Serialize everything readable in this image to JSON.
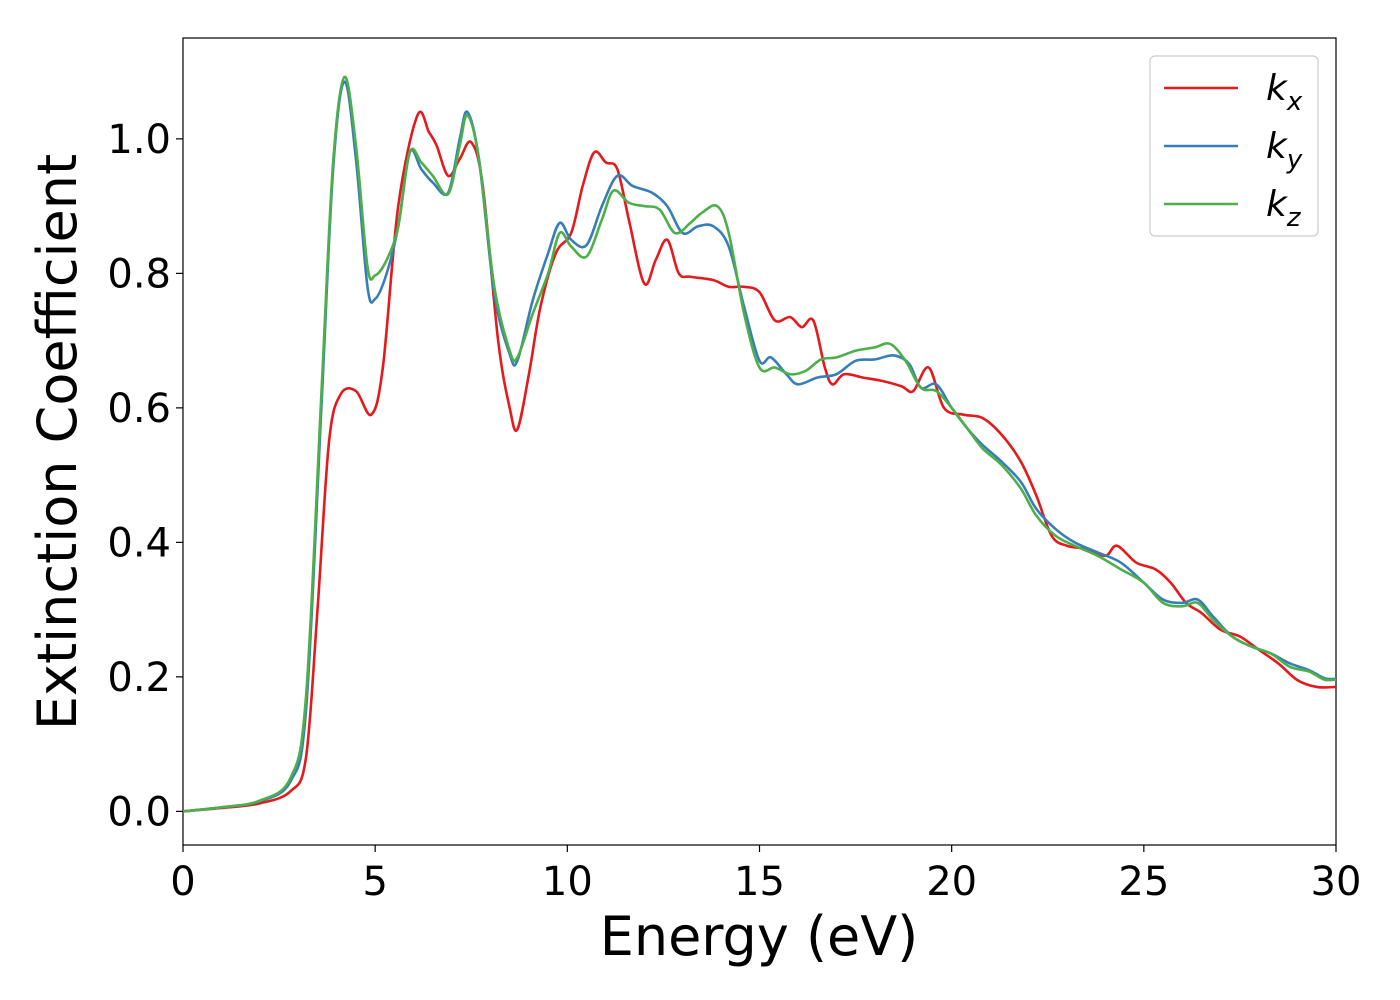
{
  "chart_data": {
    "type": "line",
    "title": "",
    "xlabel": "Energy (eV)",
    "ylabel": "Extinction Coefficient",
    "xlim": [
      0,
      30
    ],
    "ylim": [
      -0.05,
      1.15
    ],
    "xticks": [
      0,
      5,
      10,
      15,
      20,
      25,
      30
    ],
    "xtick_labels": [
      "0",
      "5",
      "10",
      "15",
      "20",
      "25",
      "30"
    ],
    "yticks": [
      0.0,
      0.2,
      0.4,
      0.6,
      0.8,
      1.0
    ],
    "ytick_labels": [
      "0.0",
      "0.2",
      "0.4",
      "0.6",
      "0.8",
      "1.0"
    ],
    "grid": false,
    "legend_placement": "top-right",
    "series": [
      {
        "name": "k",
        "subscript": "x",
        "color": "#e41a1c",
        "points": [
          [
            0,
            0.0
          ],
          [
            1,
            0.005
          ],
          [
            2,
            0.012
          ],
          [
            2.8,
            0.03
          ],
          [
            3.2,
            0.08
          ],
          [
            3.5,
            0.3
          ],
          [
            3.8,
            0.55
          ],
          [
            4.1,
            0.62
          ],
          [
            4.5,
            0.625
          ],
          [
            4.9,
            0.59
          ],
          [
            5.2,
            0.66
          ],
          [
            5.6,
            0.9
          ],
          [
            6.1,
            1.035
          ],
          [
            6.4,
            1.01
          ],
          [
            6.6,
            0.99
          ],
          [
            6.9,
            0.945
          ],
          [
            7.2,
            0.97
          ],
          [
            7.5,
            0.995
          ],
          [
            7.8,
            0.93
          ],
          [
            8.2,
            0.7
          ],
          [
            8.5,
            0.6
          ],
          [
            8.7,
            0.568
          ],
          [
            9.0,
            0.65
          ],
          [
            9.3,
            0.75
          ],
          [
            9.7,
            0.83
          ],
          [
            10.1,
            0.86
          ],
          [
            10.4,
            0.93
          ],
          [
            10.7,
            0.98
          ],
          [
            11.0,
            0.965
          ],
          [
            11.3,
            0.955
          ],
          [
            11.6,
            0.88
          ],
          [
            12.0,
            0.785
          ],
          [
            12.3,
            0.82
          ],
          [
            12.6,
            0.85
          ],
          [
            12.9,
            0.8
          ],
          [
            13.2,
            0.795
          ],
          [
            13.8,
            0.79
          ],
          [
            14.2,
            0.78
          ],
          [
            14.6,
            0.78
          ],
          [
            15.0,
            0.772
          ],
          [
            15.4,
            0.73
          ],
          [
            15.8,
            0.735
          ],
          [
            16.1,
            0.72
          ],
          [
            16.4,
            0.73
          ],
          [
            16.7,
            0.66
          ],
          [
            16.9,
            0.635
          ],
          [
            17.2,
            0.65
          ],
          [
            17.7,
            0.645
          ],
          [
            18.2,
            0.64
          ],
          [
            18.7,
            0.632
          ],
          [
            19.0,
            0.625
          ],
          [
            19.4,
            0.66
          ],
          [
            19.8,
            0.6
          ],
          [
            20.3,
            0.59
          ],
          [
            20.8,
            0.585
          ],
          [
            21.3,
            0.56
          ],
          [
            21.8,
            0.52
          ],
          [
            22.2,
            0.47
          ],
          [
            22.6,
            0.41
          ],
          [
            23.0,
            0.395
          ],
          [
            23.5,
            0.39
          ],
          [
            24.0,
            0.38
          ],
          [
            24.3,
            0.395
          ],
          [
            24.8,
            0.37
          ],
          [
            25.3,
            0.36
          ],
          [
            25.7,
            0.34
          ],
          [
            26.1,
            0.31
          ],
          [
            26.5,
            0.295
          ],
          [
            27.0,
            0.27
          ],
          [
            27.5,
            0.26
          ],
          [
            28.0,
            0.24
          ],
          [
            28.5,
            0.22
          ],
          [
            29.0,
            0.195
          ],
          [
            29.5,
            0.185
          ],
          [
            30.0,
            0.185
          ]
        ]
      },
      {
        "name": "k",
        "subscript": "y",
        "color": "#377eb8",
        "points": [
          [
            0,
            0.0
          ],
          [
            1,
            0.006
          ],
          [
            2,
            0.015
          ],
          [
            2.8,
            0.045
          ],
          [
            3.2,
            0.15
          ],
          [
            3.6,
            0.6
          ],
          [
            3.9,
            0.95
          ],
          [
            4.2,
            1.085
          ],
          [
            4.5,
            0.97
          ],
          [
            4.8,
            0.78
          ],
          [
            5.0,
            0.762
          ],
          [
            5.3,
            0.8
          ],
          [
            5.6,
            0.87
          ],
          [
            5.9,
            0.98
          ],
          [
            6.2,
            0.955
          ],
          [
            6.5,
            0.935
          ],
          [
            6.9,
            0.92
          ],
          [
            7.2,
            1.0
          ],
          [
            7.4,
            1.04
          ],
          [
            7.7,
            0.97
          ],
          [
            8.1,
            0.77
          ],
          [
            8.5,
            0.68
          ],
          [
            8.7,
            0.67
          ],
          [
            9.1,
            0.76
          ],
          [
            9.5,
            0.83
          ],
          [
            9.8,
            0.875
          ],
          [
            10.1,
            0.85
          ],
          [
            10.5,
            0.842
          ],
          [
            10.9,
            0.9
          ],
          [
            11.3,
            0.945
          ],
          [
            11.7,
            0.93
          ],
          [
            12.2,
            0.92
          ],
          [
            12.6,
            0.9
          ],
          [
            13.0,
            0.86
          ],
          [
            13.4,
            0.87
          ],
          [
            13.8,
            0.87
          ],
          [
            14.2,
            0.84
          ],
          [
            14.6,
            0.75
          ],
          [
            15.0,
            0.67
          ],
          [
            15.3,
            0.675
          ],
          [
            15.7,
            0.65
          ],
          [
            16.0,
            0.635
          ],
          [
            16.5,
            0.645
          ],
          [
            17.0,
            0.65
          ],
          [
            17.5,
            0.67
          ],
          [
            18.0,
            0.672
          ],
          [
            18.5,
            0.678
          ],
          [
            18.9,
            0.665
          ],
          [
            19.2,
            0.63
          ],
          [
            19.6,
            0.635
          ],
          [
            20.0,
            0.6
          ],
          [
            20.4,
            0.57
          ],
          [
            20.8,
            0.545
          ],
          [
            21.3,
            0.52
          ],
          [
            21.8,
            0.49
          ],
          [
            22.2,
            0.45
          ],
          [
            22.7,
            0.42
          ],
          [
            23.2,
            0.4
          ],
          [
            23.8,
            0.385
          ],
          [
            24.4,
            0.37
          ],
          [
            25.0,
            0.34
          ],
          [
            25.5,
            0.315
          ],
          [
            26.0,
            0.31
          ],
          [
            26.4,
            0.315
          ],
          [
            26.8,
            0.29
          ],
          [
            27.3,
            0.26
          ],
          [
            27.8,
            0.245
          ],
          [
            28.3,
            0.235
          ],
          [
            28.8,
            0.22
          ],
          [
            29.3,
            0.21
          ],
          [
            29.7,
            0.198
          ],
          [
            30.0,
            0.197
          ]
        ]
      },
      {
        "name": "k",
        "subscript": "z",
        "color": "#4daf4a",
        "points": [
          [
            0,
            0.0
          ],
          [
            1,
            0.006
          ],
          [
            2,
            0.016
          ],
          [
            2.8,
            0.05
          ],
          [
            3.2,
            0.17
          ],
          [
            3.6,
            0.62
          ],
          [
            3.9,
            0.96
          ],
          [
            4.2,
            1.092
          ],
          [
            4.5,
            0.99
          ],
          [
            4.8,
            0.81
          ],
          [
            5.0,
            0.797
          ],
          [
            5.3,
            0.82
          ],
          [
            5.6,
            0.87
          ],
          [
            5.9,
            0.98
          ],
          [
            6.2,
            0.965
          ],
          [
            6.5,
            0.945
          ],
          [
            6.9,
            0.918
          ],
          [
            7.2,
            0.99
          ],
          [
            7.4,
            1.035
          ],
          [
            7.7,
            0.97
          ],
          [
            8.1,
            0.78
          ],
          [
            8.5,
            0.685
          ],
          [
            8.7,
            0.675
          ],
          [
            9.1,
            0.74
          ],
          [
            9.5,
            0.8
          ],
          [
            9.8,
            0.86
          ],
          [
            10.1,
            0.84
          ],
          [
            10.5,
            0.825
          ],
          [
            10.9,
            0.88
          ],
          [
            11.2,
            0.923
          ],
          [
            11.6,
            0.905
          ],
          [
            12.0,
            0.9
          ],
          [
            12.4,
            0.895
          ],
          [
            12.8,
            0.86
          ],
          [
            13.2,
            0.875
          ],
          [
            13.5,
            0.89
          ],
          [
            13.9,
            0.9
          ],
          [
            14.2,
            0.86
          ],
          [
            14.6,
            0.74
          ],
          [
            15.0,
            0.66
          ],
          [
            15.4,
            0.66
          ],
          [
            15.8,
            0.65
          ],
          [
            16.2,
            0.655
          ],
          [
            16.6,
            0.672
          ],
          [
            17.0,
            0.675
          ],
          [
            17.5,
            0.685
          ],
          [
            18.0,
            0.69
          ],
          [
            18.4,
            0.695
          ],
          [
            18.8,
            0.67
          ],
          [
            19.2,
            0.63
          ],
          [
            19.6,
            0.625
          ],
          [
            20.0,
            0.6
          ],
          [
            20.4,
            0.57
          ],
          [
            20.8,
            0.54
          ],
          [
            21.3,
            0.515
          ],
          [
            21.8,
            0.48
          ],
          [
            22.2,
            0.44
          ],
          [
            22.7,
            0.41
          ],
          [
            23.2,
            0.395
          ],
          [
            23.8,
            0.38
          ],
          [
            24.4,
            0.36
          ],
          [
            25.0,
            0.34
          ],
          [
            25.5,
            0.31
          ],
          [
            26.0,
            0.305
          ],
          [
            26.4,
            0.31
          ],
          [
            26.8,
            0.285
          ],
          [
            27.3,
            0.26
          ],
          [
            27.8,
            0.245
          ],
          [
            28.3,
            0.235
          ],
          [
            28.8,
            0.215
          ],
          [
            29.3,
            0.208
          ],
          [
            29.7,
            0.196
          ],
          [
            30.0,
            0.196
          ]
        ]
      }
    ]
  }
}
